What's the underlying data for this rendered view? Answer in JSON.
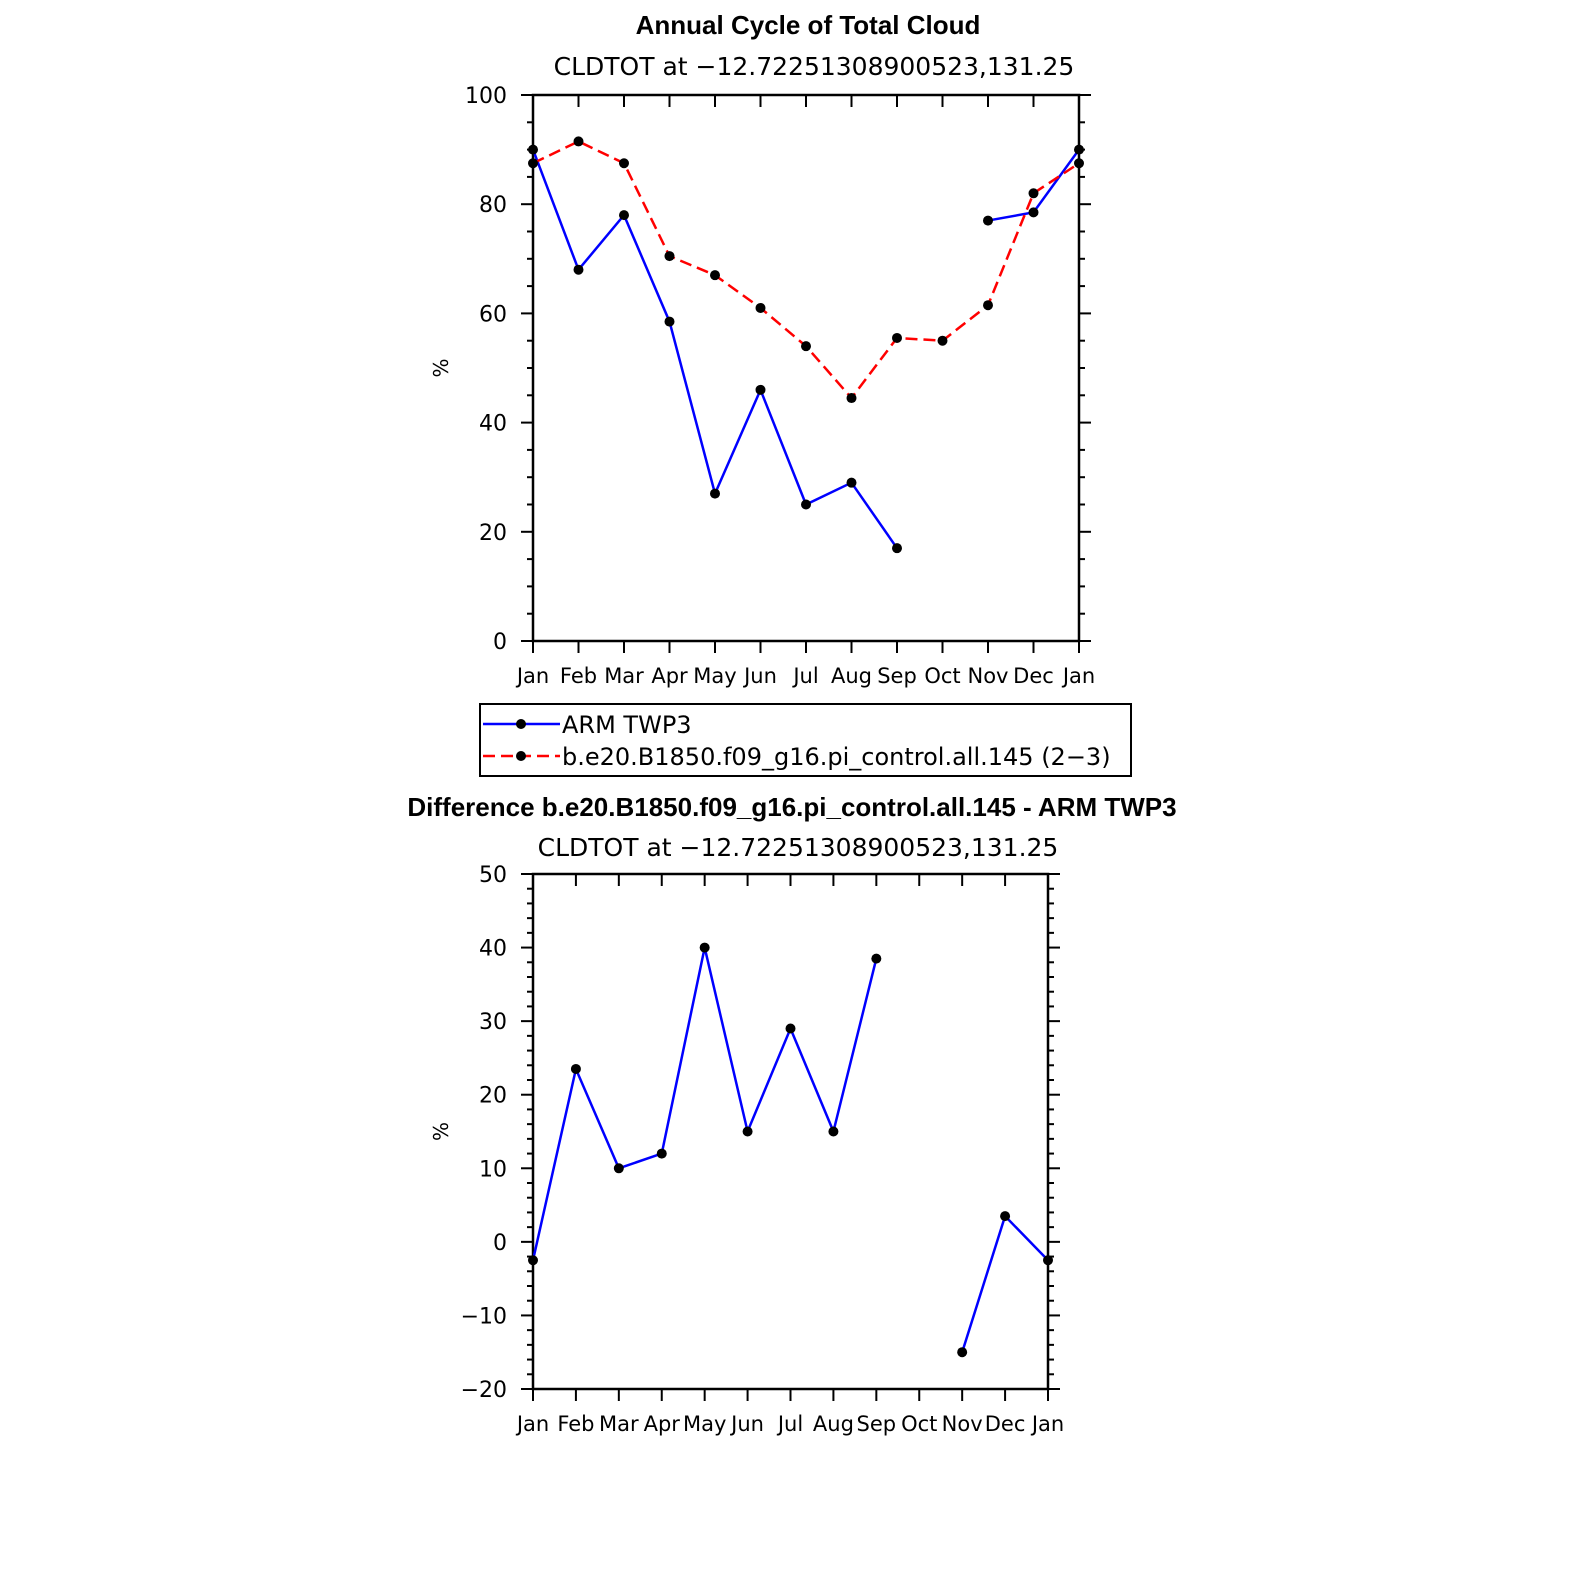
{
  "chart_data": [
    {
      "type": "line",
      "title": "Annual Cycle of Total Cloud",
      "subtitle": "CLDTOT at −12.72251308900523,131.25",
      "xlabel": "",
      "ylabel": "%",
      "categories": [
        "Jan",
        "Feb",
        "Mar",
        "Apr",
        "May",
        "Jun",
        "Jul",
        "Aug",
        "Sep",
        "Oct",
        "Nov",
        "Dec",
        "Jan"
      ],
      "yticks": [
        "0",
        "20",
        "40",
        "60",
        "80",
        "100"
      ],
      "ylim": [
        0,
        100
      ],
      "grid": false,
      "legend": "bottom",
      "series": [
        {
          "name": "ARM TWP3",
          "color": "#0000ff",
          "dash": "solid",
          "values": [
            90,
            68,
            78,
            58.5,
            27,
            46,
            25,
            29,
            17,
            null,
            77,
            78.5,
            90
          ]
        },
        {
          "name": "b.e20.B1850.f09_g16.pi_control.all.145 (2−3)",
          "color": "#ff0000",
          "dash": "dashed",
          "values": [
            87.5,
            91.5,
            87.5,
            70.5,
            67,
            61,
            54,
            44.5,
            55.5,
            55,
            61.5,
            82,
            87.5
          ]
        }
      ]
    },
    {
      "type": "line",
      "title": "Difference b.e20.B1850.f09_g16.pi_control.all.145 - ARM TWP3",
      "subtitle": "CLDTOT at −12.72251308900523,131.25",
      "xlabel": "",
      "ylabel": "%",
      "categories": [
        "Jan",
        "Feb",
        "Mar",
        "Apr",
        "May",
        "Jun",
        "Jul",
        "Aug",
        "Sep",
        "Oct",
        "Nov",
        "Dec",
        "Jan"
      ],
      "yticks": [
        "−20",
        "−10",
        "0",
        "10",
        "20",
        "30",
        "40",
        "50"
      ],
      "ylim": [
        -20,
        50
      ],
      "grid": false,
      "series": [
        {
          "color": "#0000ff",
          "values": [
            -2.5,
            23.5,
            10,
            12,
            40,
            15,
            29,
            15,
            38.5,
            null,
            -15,
            3.5,
            -2.5
          ]
        }
      ]
    }
  ]
}
